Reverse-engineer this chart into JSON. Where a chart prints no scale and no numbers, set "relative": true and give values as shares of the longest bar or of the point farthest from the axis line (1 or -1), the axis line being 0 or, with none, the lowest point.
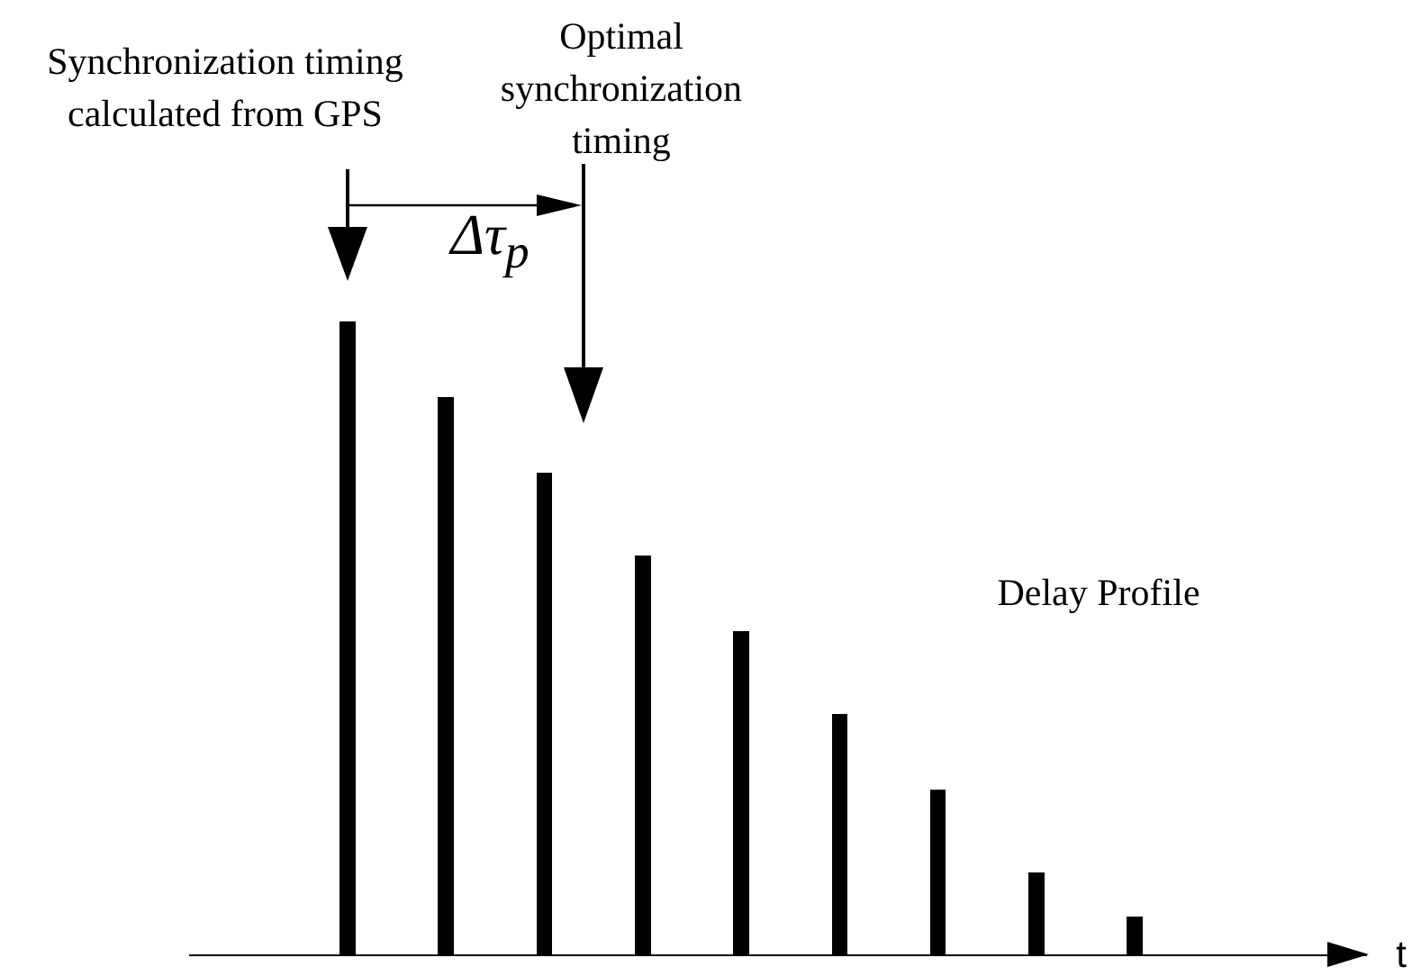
{
  "chart_data": {
    "type": "bar",
    "relative": true,
    "categories": [
      null,
      null,
      null,
      null,
      null,
      null,
      null,
      null,
      null
    ],
    "values": [
      1,
      0.88,
      0.76,
      0.63,
      0.51,
      0.38,
      0.26,
      0.13,
      0.06
    ],
    "color": "#000000",
    "annotations": [
      "Synchronization timing calculated from GPS",
      "Optimal synchronization timing",
      "Δτ$_{p}$",
      "Delay Profile",
      "t"
    ],
    "legend": false
  }
}
